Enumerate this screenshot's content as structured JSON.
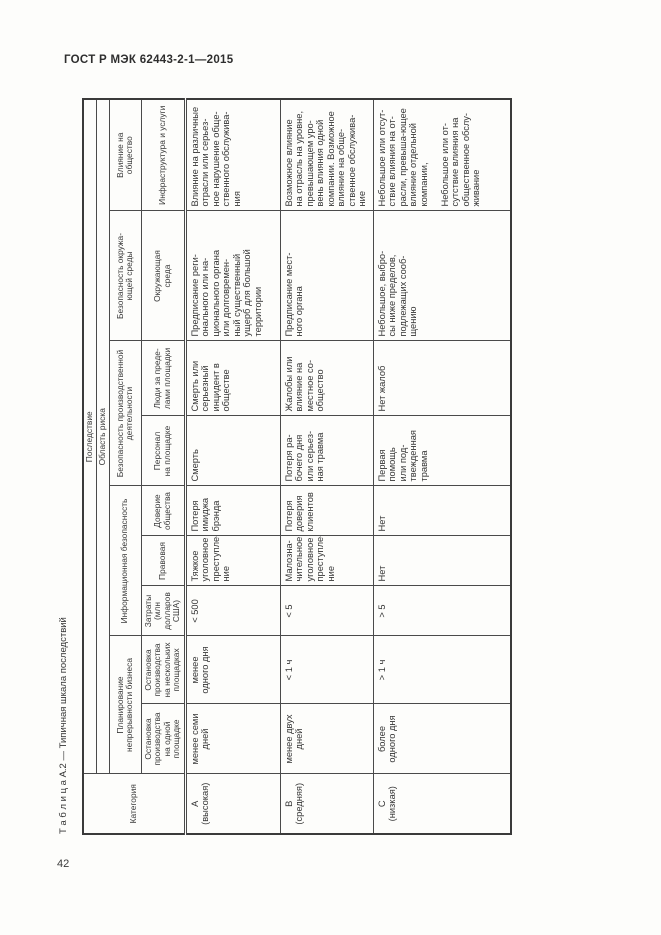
{
  "page": {
    "header_title": "ГОСТ Р МЭК 62443-2-1—2015",
    "page_number": "42"
  },
  "table": {
    "caption": "Т а б л и ц а   А.2 — Типичная шкала последствий",
    "top_headers": {
      "category": "Категория",
      "consequence": "Последствие",
      "risk_area": "Область риска"
    },
    "group_headers": [
      {
        "label": "Планирование\nнепрерывности бизнеса",
        "colspan": 2
      },
      {
        "label": "Информационная безопасность",
        "colspan": 3
      },
      {
        "label": "Безопасность производственной\nдеятельности",
        "colspan": 2
      },
      {
        "label": "Безопасность окружа-\nющей среды",
        "colspan": 1
      },
      {
        "label": "Влияние на\nобщество",
        "colspan": 1
      }
    ],
    "column_headers": [
      "Остановка\nпроизводства\nна одной\nплощадке",
      "Остановка\nпроизводства\nна нескольких\nплощадках",
      "Затраты\n(млн\nдолларов\nСША)",
      "Правовая",
      "Доверие\nобщества",
      "Персонал\nна площадке",
      "Люди за преде-\nлами площадки",
      "Окружающая\nсреда",
      "Инфраструктура и услуги"
    ],
    "rows": [
      {
        "category": "А\n(высокая)",
        "cells": [
          "менее семи\nдней",
          "менее\nодного дня",
          "< 500",
          "Тяжкое\nуголовное\nпреступле-\nние",
          "Потеря\nимиджа\nбрэнда",
          "Смерть",
          "Смерть или\nсерьезный\nинцидент в\nобществе",
          "Предписание реги-\nонального или на-\nционального органа\nили долговремен-\nный существенный\nущерб для большой\nтерритории",
          "Влияние на различные\nотрасли или серьез-\nное нарушение обще-\nственного обслужива-\nния"
        ]
      },
      {
        "category": "В\n(средняя)",
        "cells": [
          "менее двух\nдней",
          "< 1 ч",
          "< 5",
          "Малозна-\nчительное\nуголовное\nпреступле-\nние",
          "Потеря\nдоверия\nклиентов",
          "Потеря ра-\nбочего дня\nили серьез-\nная травма",
          "Жалобы или\nвлияние на\nместное со-\nобщество",
          "Предписание мест-\nного органа",
          "Возможное влияние\nна отрасль на уровне,\nпревышающем уро-\nвень влияния одной\nкомпании. Возможное\nвлияние на обще-\nственное обслужива-\nние"
        ]
      },
      {
        "category": "С\n(низкая)",
        "cells": [
          "более\nодного дня",
          "> 1 ч",
          "> 5",
          "Нет",
          "Нет",
          "Первая\nпомощь\nили под-\nтвежденная\nтравма",
          "Нет жалоб",
          "Небольшое, выбро-\nсы ниже пределов,\nподлежащих сооб-\nщению",
          "Небольшое или отсут-\nствие влияния на от-\nрасли, превыша-ющее\nвлияние отдельной\nкомпании,\n\nНебольшое или от-\nсутствие влияния на\nобщественное обслу-\nживание"
        ]
      }
    ]
  },
  "colors": {
    "page_background": "#fdfdfb",
    "text": "#333333",
    "table_border": "#4a4a4a"
  }
}
